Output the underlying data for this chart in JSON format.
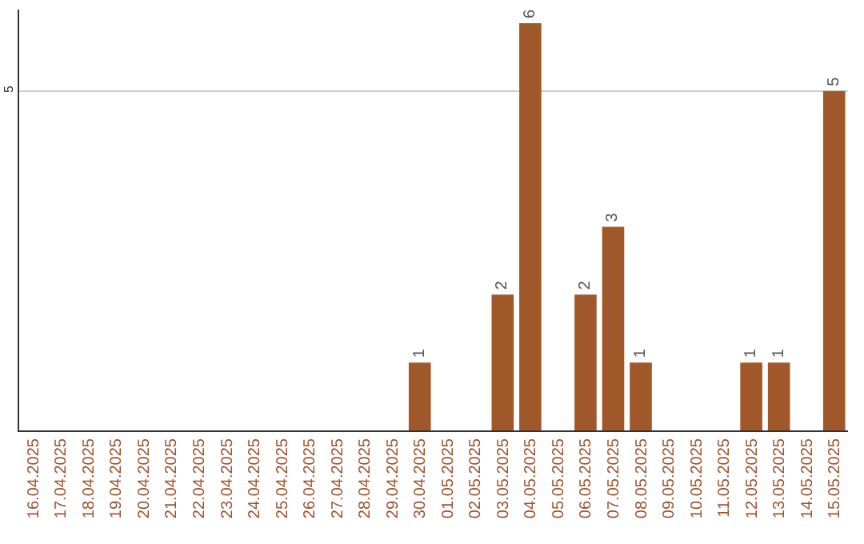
{
  "chart_data": {
    "type": "bar",
    "categories": [
      "16.04.2025",
      "17.04.2025",
      "18.04.2025",
      "19.04.2025",
      "20.04.2025",
      "21.04.2025",
      "22.04.2025",
      "23.04.2025",
      "24.04.2025",
      "25.04.2025",
      "26.04.2025",
      "27.04.2025",
      "28.04.2025",
      "29.04.2025",
      "30.04.2025",
      "01.05.2025",
      "02.05.2025",
      "03.05.2025",
      "04.05.2025",
      "05.05.2025",
      "06.05.2025",
      "07.05.2025",
      "08.05.2025",
      "09.05.2025",
      "10.05.2025",
      "11.05.2025",
      "12.05.2025",
      "13.05.2025",
      "14.05.2025",
      "15.05.2025"
    ],
    "values": [
      null,
      null,
      null,
      null,
      null,
      null,
      null,
      null,
      null,
      null,
      null,
      null,
      null,
      null,
      1,
      null,
      null,
      2,
      6,
      null,
      2,
      3,
      1,
      null,
      null,
      null,
      1,
      1,
      null,
      5
    ],
    "color": "#a0582a",
    "ylim": [
      0,
      6.2
    ],
    "yticks": [
      5
    ],
    "grid": "y",
    "data_labels": true,
    "legend": false
  }
}
